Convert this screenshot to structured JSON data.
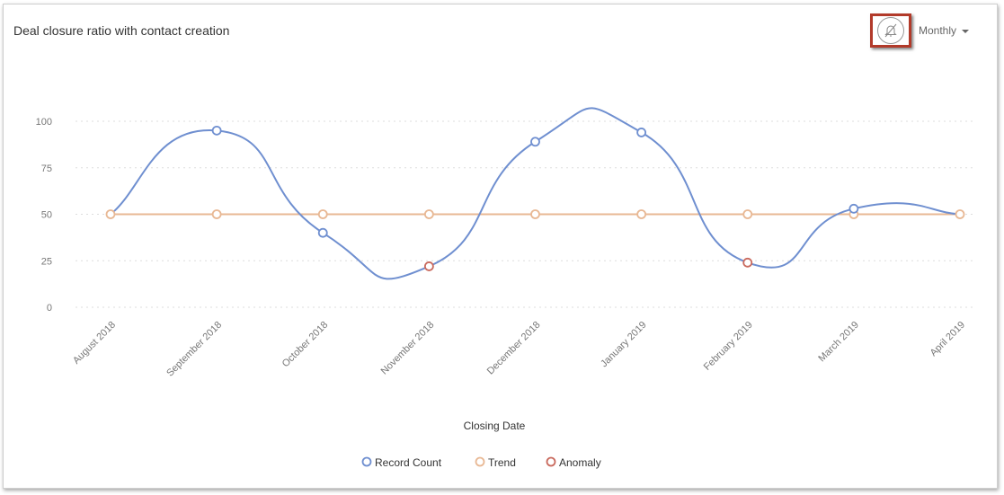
{
  "header": {
    "title": "Deal closure ratio with contact creation",
    "period_label": "Monthly",
    "alert_icon": "bell-off-icon"
  },
  "chart_data": {
    "type": "line",
    "title": "Deal closure ratio with contact creation",
    "xlabel": "Closing Date",
    "ylabel": "",
    "categories": [
      "August 2018",
      "September 2018",
      "October 2018",
      "November 2018",
      "December 2018",
      "January 2019",
      "February 2019",
      "March 2019",
      "April 2019"
    ],
    "yticks": [
      0,
      25,
      50,
      75,
      100
    ],
    "ylim": [
      0,
      100
    ],
    "grid": true,
    "legend_position": "bottom",
    "series": [
      {
        "name": "Record Count",
        "color": "#6f8fd0",
        "values": [
          50,
          95,
          40,
          22,
          89,
          94,
          24,
          53,
          50
        ]
      },
      {
        "name": "Trend",
        "color": "#e8b894",
        "values": [
          50,
          50,
          50,
          50,
          50,
          50,
          50,
          50,
          50
        ]
      }
    ],
    "anomalies": {
      "name": "Anomaly",
      "color": "#c96a5e",
      "indices": [
        3,
        6
      ]
    }
  }
}
